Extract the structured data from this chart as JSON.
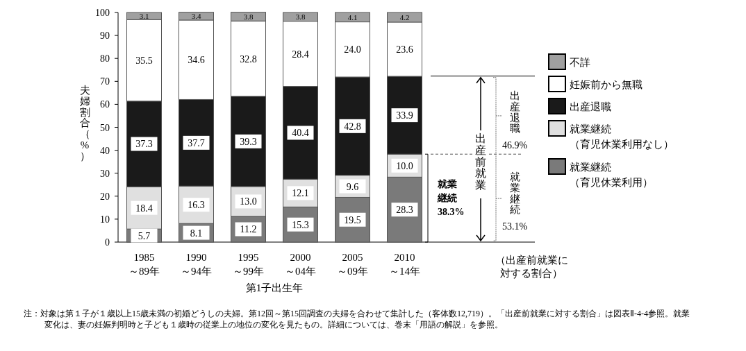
{
  "chart_data": {
    "type": "bar",
    "stacked": true,
    "ylabel": "夫婦割合（%）",
    "xlabel": "第1子出生年",
    "categories": [
      "1985\n～89年",
      "1990\n～94年",
      "1995\n～99年",
      "2000\n～04年",
      "2005\n～09年",
      "2010\n～14年"
    ],
    "series": [
      {
        "name": "就業継続（育児休業利用）",
        "color": "#7a7a7a",
        "values": [
          5.7,
          8.1,
          11.2,
          15.3,
          19.5,
          28.3
        ],
        "value_labels": [
          "5.7",
          "8.1",
          "11.2",
          "15.3",
          "19.5",
          "28.3"
        ]
      },
      {
        "name": "就業継続（育児休業利用なし）",
        "color": "#e0e0e0",
        "values": [
          18.4,
          16.3,
          13.0,
          12.1,
          9.6,
          10.0
        ],
        "value_labels": [
          "18.4",
          "16.3",
          "13.0",
          "12.1",
          "9.6",
          "10.0"
        ]
      },
      {
        "name": "出産退職",
        "color": "#1a1a1a",
        "values": [
          37.3,
          37.7,
          39.3,
          40.4,
          42.8,
          33.9
        ],
        "value_labels": [
          "37.3",
          "37.7",
          "39.3",
          "40.4",
          "42.8",
          "33.9"
        ]
      },
      {
        "name": "妊娠前から無職",
        "color": "#ffffff",
        "values": [
          35.5,
          34.6,
          32.8,
          28.4,
          24.0,
          23.6
        ],
        "value_labels": [
          "35.5",
          "34.6",
          "32.8",
          "28.4",
          "24.0",
          "23.6"
        ]
      },
      {
        "name": "不詳",
        "color": "#a0a0a0",
        "values": [
          3.1,
          3.4,
          3.8,
          3.8,
          4.1,
          4.2
        ],
        "value_labels": [
          "3.1",
          "3.4",
          "3.8",
          "3.8",
          "4.1",
          "4.2"
        ]
      }
    ],
    "ylim": [
      0,
      100
    ],
    "yticks": [
      0,
      10,
      20,
      30,
      40,
      50,
      60,
      70,
      80,
      90,
      100
    ],
    "legend": "right",
    "annotations": [
      "就業継続 38.3%",
      "出産前就業",
      "出産退職 46.9%",
      "就業継続 53.1%",
      "（出産前就業に対する割合）",
      "注：対象は第１子が１歳以上15歳未満の初婚どうしの夫婦。第12回～第15回調査の夫婦を合わせて集計した（客体数12,719）。「出産前就業に対する割合」は図表Ⅱ-4-4参照。就業変化は、妻の妊娠判明時と子ども１歳時の従業上の地位の変化を見たもの。詳細については、巻末「用語の解説」を参照。"
    ]
  }
}
